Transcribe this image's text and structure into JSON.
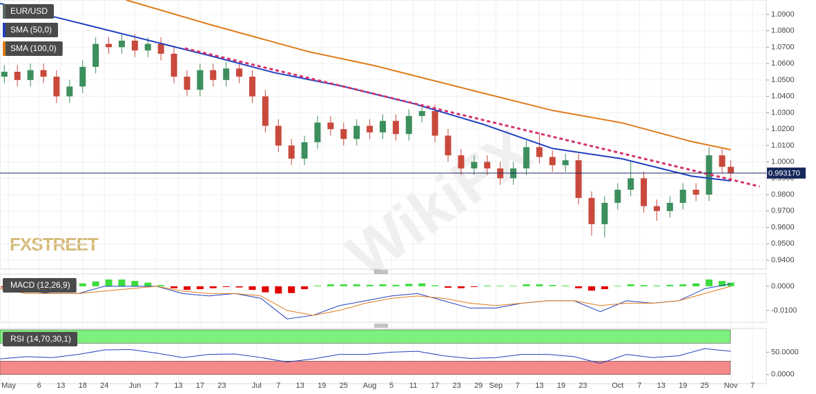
{
  "chart_data": {
    "type": "candlestick",
    "symbol": "EUR/USD",
    "logo": "FXSTREET",
    "watermark": "WikiFX",
    "up_color": "#3d8f5e",
    "down_color": "#c9493c",
    "symbol_color": "#5a6b5f",
    "x": [
      1,
      4,
      7,
      10,
      13,
      16,
      19,
      22,
      25,
      28,
      31,
      34,
      37,
      40,
      43,
      46,
      49,
      52,
      55,
      58,
      61,
      64,
      67,
      70,
      73,
      76,
      79,
      82,
      85,
      88,
      91,
      94,
      97,
      100,
      103,
      106,
      109,
      112,
      115,
      118,
      121,
      124,
      127,
      130,
      133,
      136,
      139,
      142,
      145,
      148,
      151,
      154,
      157,
      160,
      163,
      166,
      168
    ],
    "open": [
      1.052,
      1.055,
      1.05,
      1.056,
      1.052,
      1.04,
      1.046,
      1.058,
      1.072,
      1.07,
      1.074,
      1.068,
      1.072,
      1.066,
      1.052,
      1.044,
      1.056,
      1.05,
      1.057,
      1.052,
      1.04,
      1.022,
      1.01,
      1.002,
      1.012,
      1.024,
      1.02,
      1.014,
      1.022,
      1.018,
      1.025,
      1.017,
      1.028,
      1.031,
      1.016,
      1.004,
      0.996,
      1.0,
      0.996,
      0.99,
      0.996,
      1.009,
      1.003,
      0.998,
      1.001,
      0.978,
      0.962,
      0.975,
      0.983,
      0.99,
      0.973,
      0.97,
      0.975,
      0.983,
      0.98,
      1.004,
      0.997
    ],
    "high": [
      1.059,
      1.059,
      1.06,
      1.06,
      1.056,
      1.05,
      1.062,
      1.076,
      1.076,
      1.078,
      1.078,
      1.076,
      1.076,
      1.07,
      1.056,
      1.06,
      1.06,
      1.061,
      1.061,
      1.056,
      1.044,
      1.026,
      1.014,
      1.016,
      1.028,
      1.028,
      1.024,
      1.026,
      1.026,
      1.029,
      1.029,
      1.032,
      1.035,
      1.035,
      1.02,
      1.008,
      1.004,
      1.004,
      1.0,
      1.0,
      1.013,
      1.018,
      1.007,
      1.005,
      1.005,
      0.982,
      0.979,
      0.987,
      1.0,
      0.994,
      0.977,
      0.979,
      0.987,
      0.987,
      1.009,
      1.008,
      1.001
    ],
    "low": [
      1.048,
      1.046,
      1.046,
      1.048,
      1.036,
      1.036,
      1.042,
      1.054,
      1.066,
      1.066,
      1.064,
      1.064,
      1.062,
      1.048,
      1.04,
      1.04,
      1.046,
      1.046,
      1.048,
      1.036,
      1.018,
      1.006,
      0.998,
      0.998,
      1.008,
      1.016,
      1.01,
      1.01,
      1.014,
      1.014,
      1.013,
      1.013,
      1.024,
      1.012,
      1.0,
      0.992,
      0.992,
      0.992,
      0.986,
      0.986,
      0.992,
      0.999,
      0.994,
      0.994,
      0.974,
      0.955,
      0.954,
      0.971,
      0.979,
      0.969,
      0.964,
      0.966,
      0.971,
      0.976,
      0.976,
      0.993,
      0.989
    ],
    "close": [
      1.055,
      1.05,
      1.056,
      1.052,
      1.04,
      1.046,
      1.058,
      1.072,
      1.07,
      1.074,
      1.068,
      1.072,
      1.066,
      1.052,
      1.044,
      1.056,
      1.05,
      1.057,
      1.052,
      1.04,
      1.022,
      1.01,
      1.002,
      1.012,
      1.024,
      1.02,
      1.014,
      1.022,
      1.018,
      1.025,
      1.017,
      1.028,
      1.031,
      1.016,
      1.004,
      0.996,
      1.0,
      0.996,
      0.99,
      0.996,
      1.009,
      1.003,
      0.998,
      1.001,
      0.978,
      0.962,
      0.975,
      0.983,
      0.99,
      0.973,
      0.97,
      0.975,
      0.983,
      0.98,
      1.004,
      0.997,
      0.9932
    ],
    "xlim": [
      0,
      176
    ],
    "xticks": [
      {
        "value": 2,
        "label": "May"
      },
      {
        "value": 9,
        "label": "6"
      },
      {
        "value": 14,
        "label": "13"
      },
      {
        "value": 19,
        "label": "18"
      },
      {
        "value": 24,
        "label": "24"
      },
      {
        "value": 31,
        "label": "Jun"
      },
      {
        "value": 36,
        "label": "7"
      },
      {
        "value": 41,
        "label": "13"
      },
      {
        "value": 46,
        "label": "17"
      },
      {
        "value": 51,
        "label": "23"
      },
      {
        "value": 59,
        "label": "Jul"
      },
      {
        "value": 64,
        "label": "7"
      },
      {
        "value": 69,
        "label": "13"
      },
      {
        "value": 74,
        "label": "19"
      },
      {
        "value": 79,
        "label": "25"
      },
      {
        "value": 85,
        "label": "Aug"
      },
      {
        "value": 90,
        "label": "5"
      },
      {
        "value": 95,
        "label": "11"
      },
      {
        "value": 100,
        "label": "17"
      },
      {
        "value": 105,
        "label": "23"
      },
      {
        "value": 110,
        "label": "29"
      },
      {
        "value": 114,
        "label": "Sep"
      },
      {
        "value": 119,
        "label": "7"
      },
      {
        "value": 124,
        "label": "13"
      },
      {
        "value": 129,
        "label": "19"
      },
      {
        "value": 134,
        "label": "23"
      },
      {
        "value": 142,
        "label": "Oct"
      },
      {
        "value": 147,
        "label": "7"
      },
      {
        "value": 152,
        "label": "13"
      },
      {
        "value": 157,
        "label": "19"
      },
      {
        "value": 162,
        "label": "25"
      },
      {
        "value": 168,
        "label": "Nov"
      },
      {
        "value": 173,
        "label": "7"
      }
    ],
    "ylim": [
      0.9354,
      1.0988
    ],
    "yticks": [
      {
        "value": 0.94,
        "label": "0.9400"
      },
      {
        "value": 0.95,
        "label": "0.9500"
      },
      {
        "value": 0.96,
        "label": "0.9600"
      },
      {
        "value": 0.97,
        "label": "0.9700"
      },
      {
        "value": 0.98,
        "label": "0.9800"
      },
      {
        "value": 0.99,
        "label": "0.9900"
      },
      {
        "value": 1.0,
        "label": "1.0000"
      },
      {
        "value": 1.01,
        "label": "1.0100"
      },
      {
        "value": 1.02,
        "label": "1.0200"
      },
      {
        "value": 1.03,
        "label": "1.0300"
      },
      {
        "value": 1.04,
        "label": "1.0400"
      },
      {
        "value": 1.05,
        "label": "1.0500"
      },
      {
        "value": 1.06,
        "label": "1.0600"
      },
      {
        "value": 1.07,
        "label": "1.0700"
      },
      {
        "value": 1.08,
        "label": "1.0800"
      },
      {
        "value": 1.09,
        "label": "1.0900"
      }
    ],
    "series": [
      {
        "name": "SMA (50,0)",
        "color": "#1f3fbf",
        "x": [
          0,
          16,
          32,
          48,
          63,
          79,
          95,
          111,
          127,
          143,
          159,
          168
        ],
        "values": [
          1.0967,
          1.0862,
          1.0756,
          1.065,
          1.0545,
          1.046,
          1.0356,
          1.023,
          1.0082,
          1.0019,
          0.9913,
          0.9884
        ]
      },
      {
        "name": "SMA (100,0)",
        "color": "#e07b1a",
        "x": [
          29,
          48,
          71,
          86,
          111,
          127,
          143,
          159,
          168
        ],
        "values": [
          1.0988,
          1.084,
          1.0672,
          1.0588,
          1.042,
          1.0314,
          1.0238,
          1.0124,
          1.0074
        ]
      }
    ],
    "trendline": {
      "color": "#d6336c",
      "x": [
        42.5,
        174.6
      ],
      "values": [
        1.0693,
        0.985
      ]
    },
    "last_price": {
      "value": 0.99317,
      "label": "0.993170",
      "color": "#16275a"
    },
    "macd": {
      "name": "MACD (12,26,9)",
      "ylim": [
        -0.0143,
        0.0051
      ],
      "yticks": [
        {
          "value": 0,
          "label": "0.0000"
        },
        {
          "value": -0.01,
          "label": "-0.0100"
        }
      ],
      "pos_color": "#3ddc3d",
      "neg_color": "#e00000",
      "macd_color": "#1f3fbf",
      "signal_color": "#e07b1a",
      "histogram": [
        -0.0005,
        -0.0008,
        -0.0006,
        -0.0004,
        -0.0003,
        0.0003,
        0.0012,
        0.002,
        0.0028,
        0.0028,
        0.0022,
        0.0015,
        0.0005,
        -0.0008,
        -0.0015,
        -0.0012,
        -0.0008,
        -0.0003,
        -0.0005,
        -0.0015,
        -0.0025,
        -0.003,
        -0.0028,
        -0.0012,
        0.0003,
        0.0008,
        0.0008,
        0.0008,
        0.0006,
        0.0008,
        0.0006,
        0.001,
        0.0012,
        0.0004,
        -0.0006,
        -0.0008,
        -0.0003,
        0.0003,
        0.0002,
        0.0002,
        0.0008,
        0.0008,
        0.0005,
        0.0003,
        -0.0008,
        -0.0018,
        -0.0012,
        0.0002,
        0.0008,
        0.0005,
        0.0003,
        0.0006,
        0.0008,
        0.0012,
        0.0028,
        0.0022,
        0.0015
      ],
      "x": [
        0,
        6,
        12,
        18,
        24,
        30,
        36,
        42,
        48,
        54,
        60,
        66,
        72,
        78,
        84,
        90,
        96,
        102,
        108,
        114,
        120,
        126,
        132,
        138,
        144,
        150,
        156,
        162,
        168
      ],
      "line": [
        -0.001,
        -0.002,
        -0.003,
        -0.003,
        0.0,
        0.0,
        0.0,
        -0.003,
        -0.004,
        -0.003,
        -0.005,
        -0.0135,
        -0.012,
        -0.008,
        -0.006,
        -0.004,
        -0.003,
        -0.006,
        -0.009,
        -0.009,
        -0.007,
        -0.006,
        -0.006,
        -0.0105,
        -0.006,
        -0.007,
        -0.006,
        -0.001,
        0.001
      ],
      "signal": [
        -0.001,
        -0.003,
        -0.003,
        -0.003,
        -0.002,
        -0.001,
        0.0,
        -0.002,
        -0.003,
        -0.003,
        -0.004,
        -0.01,
        -0.012,
        -0.01,
        -0.007,
        -0.005,
        -0.004,
        -0.005,
        -0.007,
        -0.008,
        -0.007,
        -0.006,
        -0.006,
        -0.008,
        -0.007,
        -0.007,
        -0.006,
        -0.003,
        0.0
      ]
    },
    "rsi": {
      "name": "RSI (14,70,30,1)",
      "ylim": [
        -18.75,
        101.5
      ],
      "upper": 70,
      "lower": 30,
      "upper_color": "#7ef07e",
      "lower_color": "#f58a8a",
      "color": "#1f3fbf",
      "yticks": [
        {
          "value": 0,
          "label": "0.0000"
        },
        {
          "value": 50,
          "label": "50.0000"
        }
      ],
      "x": [
        0,
        6,
        12,
        18,
        24,
        30,
        36,
        42,
        48,
        54,
        60,
        66,
        72,
        78,
        84,
        90,
        96,
        102,
        108,
        114,
        120,
        126,
        132,
        138,
        144,
        150,
        156,
        162,
        168
      ],
      "values": [
        35,
        40,
        38,
        45,
        55,
        56,
        48,
        38,
        45,
        46,
        38,
        28,
        35,
        45,
        45,
        50,
        52,
        42,
        36,
        38,
        45,
        45,
        40,
        25,
        45,
        38,
        42,
        58,
        52
      ]
    }
  }
}
